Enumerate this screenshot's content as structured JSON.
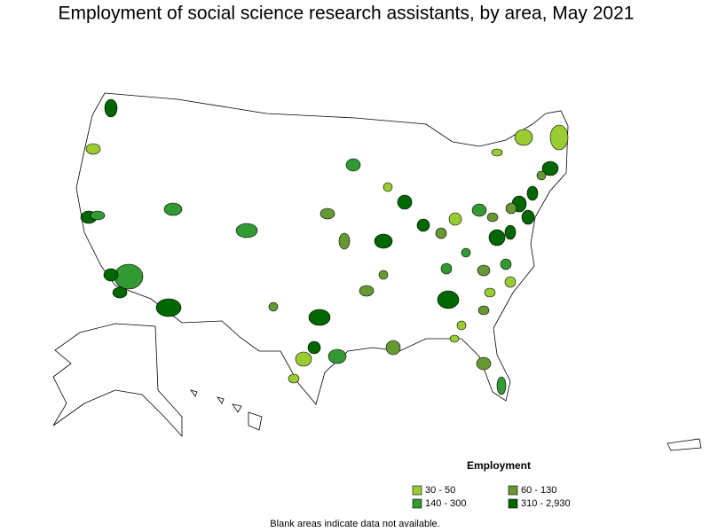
{
  "title": "Employment of social science research assistants, by area, May 2021",
  "legend": {
    "title": "Employment",
    "items": [
      {
        "label": "30 - 50",
        "color": "#99cc33"
      },
      {
        "label": "60 - 130",
        "color": "#669933"
      },
      {
        "label": "140 - 300",
        "color": "#339933"
      },
      {
        "label": "310 - 2,930",
        "color": "#006600"
      }
    ]
  },
  "footnote": "Blank areas indicate data not available."
}
